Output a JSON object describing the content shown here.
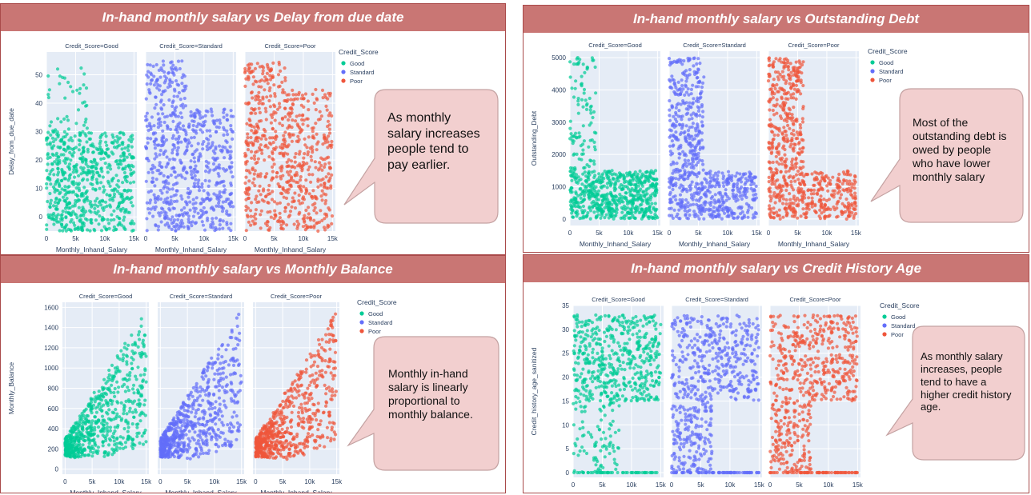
{
  "legend_title": "Credit_Score",
  "facet_labels": [
    "Credit_Score=Good",
    "Credit_Score=Standard",
    "Credit_Score=Poor"
  ],
  "x_label": "Monthly_Inhand_Salary",
  "x_ticks": [
    "0",
    "5k",
    "10k",
    "15k"
  ],
  "series": [
    {
      "name": "Good",
      "color": "#00cc96"
    },
    {
      "name": "Standard",
      "color": "#636efa"
    },
    {
      "name": "Poor",
      "color": "#ef553b"
    }
  ],
  "panels": [
    {
      "title": "In-hand monthly salary vs Delay from due date",
      "callout": "As monthly salary increases people tend to pay earlier."
    },
    {
      "title": "In-hand monthly salary vs Outstanding Debt",
      "callout": "Most of the outstanding debt is owed by people who have lower monthly salary"
    },
    {
      "title": "In-hand monthly salary vs Monthly Balance",
      "callout": "Monthly in-hand salary is linearly proportional to monthly balance."
    },
    {
      "title": "In-hand monthly salary vs Credit History Age",
      "callout": "As monthly salary increases, people tend to have a higher credit history age."
    }
  ],
  "chart_data": [
    {
      "type": "scatter",
      "title": "In-hand monthly salary vs Delay from due date",
      "xlabel": "Monthly_Inhand_Salary",
      "ylabel": "Delay_from_due_date",
      "xlim": [
        0,
        15500
      ],
      "ylim": [
        -5,
        58
      ],
      "y_ticks": [
        0,
        10,
        20,
        30,
        40,
        50
      ],
      "y_tick_labels": [
        "0",
        "10",
        "20",
        "30",
        "40",
        "50"
      ],
      "facets": [
        "Good",
        "Standard",
        "Poor"
      ],
      "approx_ranges": {
        "Good": "low salary up to ~7k: delay -5 to 55; salary 7k-15k: delay -5 to ~30",
        "Standard": "salary up to ~7k: delay -5 to 55; 7k-15k: delay -5 to ~38",
        "Poor": "salary up to ~7k: delay -5 to 55; 7k-15k: delay 0 to ~45"
      }
    },
    {
      "type": "scatter",
      "title": "In-hand monthly salary vs Outstanding Debt",
      "xlabel": "Monthly_Inhand_Salary",
      "ylabel": "Outstanding_Debt",
      "xlim": [
        0,
        15500
      ],
      "ylim": [
        -200,
        5200
      ],
      "y_ticks": [
        0,
        1000,
        2000,
        3000,
        4000,
        5000
      ],
      "y_tick_labels": [
        "0",
        "1000",
        "2000",
        "3000",
        "4000",
        "5000"
      ],
      "facets": [
        "Good",
        "Standard",
        "Poor"
      ],
      "approx_ranges": {
        "Good": "debt 0-1500 across salary 0-15k; sparse up to 5000 for salary < 6k",
        "Standard": "debt 0-1500 across 0-15k; dense up to 5000 for salary < 6k",
        "Poor": "debt 0-1500 across 0-15k; dense up to 5000 for salary < 6k"
      }
    },
    {
      "type": "scatter",
      "title": "In-hand monthly salary vs Monthly Balance",
      "xlabel": "Monthly_Inhand_Salary",
      "ylabel": "Monthly_Balance",
      "xlim": [
        -500,
        15500
      ],
      "ylim": [
        -50,
        1650
      ],
      "y_ticks": [
        0,
        200,
        400,
        600,
        800,
        1000,
        1200,
        1400,
        1600
      ],
      "y_tick_labels": [
        "0",
        "200",
        "400",
        "600",
        "800",
        "1000",
        "1200",
        "1400",
        "1600"
      ],
      "facets": [
        "Good",
        "Standard",
        "Poor"
      ],
      "approx_ranges": {
        "Good": "balance rises roughly linearly with salary, ~250 at 0 to ~1500 at 15k",
        "Standard": "balance rises roughly linearly with salary, ~250 at 0 to ~1550 at 15k",
        "Poor": "balance rises roughly linearly with salary, ~250 at 0 to ~1550 at 15k"
      }
    },
    {
      "type": "scatter",
      "title": "In-hand monthly salary vs Credit History Age",
      "xlabel": "Monthly_Inhand_Salary",
      "ylabel": "Credit_history_age_sanitized",
      "xlim": [
        0,
        15500
      ],
      "ylim": [
        -1,
        35
      ],
      "y_ticks": [
        0,
        5,
        10,
        15,
        20,
        25,
        30,
        35
      ],
      "y_tick_labels": [
        "0",
        "5",
        "10",
        "15",
        "20",
        "25",
        "30",
        "35"
      ],
      "facets": [
        "Good",
        "Standard",
        "Poor"
      ],
      "approx_ranges": {
        "Good": "mostly 15-33 across 0-15k; sparse 0-15 for salary < 8k; row at 0",
        "Standard": "dense 0-33 for salary < 7k; 15-33 for 7k-15k",
        "Poor": "dense 0-33 for salary < 7k; 15-33 for 7k-15k; row at 0"
      }
    }
  ]
}
